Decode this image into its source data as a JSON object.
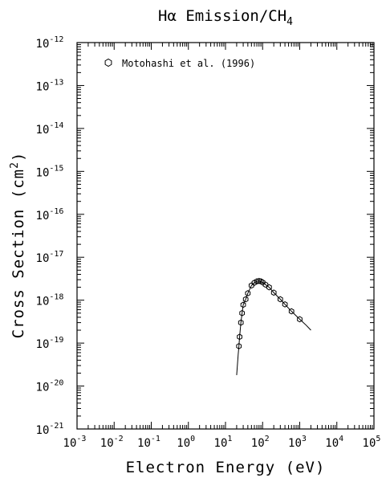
{
  "chart_data": {
    "type": "scatter",
    "title": "Hα Emission/CH",
    "title_subscript": "4",
    "xlabel": "Electron Energy (eV)",
    "ylabel_main": "Cross Section (cm",
    "ylabel_sup": "2",
    "ylabel_close": ")",
    "x_scale": "log",
    "y_scale": "log",
    "xlim": [
      0.001,
      100000
    ],
    "ylim": [
      1e-21,
      1e-12
    ],
    "x_tick_exponents": [
      "-3",
      "-2",
      "-1",
      "0",
      "1",
      "2",
      "3",
      "4",
      "5"
    ],
    "y_tick_exponents": [
      "-21",
      "-20",
      "-19",
      "-18",
      "-17",
      "-16",
      "-15",
      "-14",
      "-13",
      "-12"
    ],
    "tick_base": "10",
    "grid": false,
    "legend_position": "top-left",
    "series": [
      {
        "name": "Motohashi et al. (1996)",
        "marker": "hexagon",
        "x": [
          23,
          24,
          26,
          28,
          30,
          35,
          40,
          50,
          60,
          70,
          80,
          90,
          100,
          120,
          150,
          200,
          300,
          400,
          600,
          1000
        ],
        "y": [
          8.5e-20,
          1.4e-19,
          3e-19,
          5e-19,
          7.8e-19,
          1.05e-18,
          1.45e-18,
          2.2e-18,
          2.55e-18,
          2.75e-18,
          2.8e-18,
          2.75e-18,
          2.6e-18,
          2.3e-18,
          2e-18,
          1.5e-18,
          1.05e-18,
          8e-19,
          5.5e-19,
          3.6e-19
        ]
      }
    ],
    "fit_curve": {
      "x": [
        20,
        22,
        23,
        24,
        26,
        28,
        30,
        35,
        40,
        50,
        60,
        70,
        80,
        90,
        100,
        120,
        150,
        200,
        300,
        400,
        600,
        1000,
        1500,
        2000
      ],
      "y": [
        1.8e-20,
        5.5e-20,
        8.5e-20,
        1.4e-19,
        3e-19,
        5e-19,
        7.8e-19,
        1.05e-18,
        1.45e-18,
        2.2e-18,
        2.55e-18,
        2.75e-18,
        2.8e-18,
        2.75e-18,
        2.6e-18,
        2.3e-18,
        2e-18,
        1.5e-18,
        1.05e-18,
        8e-19,
        5.5e-19,
        3.6e-19,
        2.6e-19,
        2e-19
      ]
    }
  }
}
